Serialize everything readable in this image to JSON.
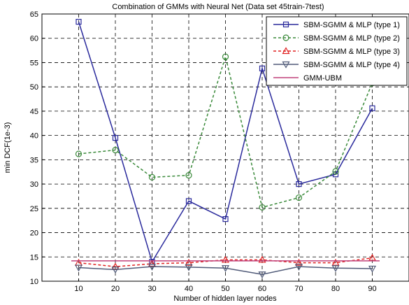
{
  "chart_data": {
    "type": "line",
    "title": "Combination of GMMs with Neural Net (Data set 45train-7test)",
    "xlabel": "Number of hidden layer nodes",
    "ylabel": "min DCF(1e-3)",
    "xlim": [
      0,
      100
    ],
    "ylim": [
      10,
      65
    ],
    "xticks": [
      10,
      20,
      30,
      40,
      50,
      60,
      70,
      80,
      90
    ],
    "yticks": [
      10,
      15,
      20,
      25,
      30,
      35,
      40,
      45,
      50,
      55,
      60,
      65
    ],
    "grid": true,
    "legend_position": "top-right",
    "x": [
      10,
      20,
      30,
      40,
      50,
      60,
      70,
      80,
      90
    ],
    "series": [
      {
        "name": "SBM-SGMM & MLP (type 1)",
        "color": "#2a2a9c",
        "dash": "solid",
        "marker": "square",
        "values": [
          63.4,
          39.5,
          14.0,
          26.5,
          22.8,
          53.8,
          30.0,
          32.0,
          45.6
        ]
      },
      {
        "name": "SBM-SGMM & MLP (type 2)",
        "color": "#3a8a3a",
        "dash": "dashed",
        "marker": "circle",
        "values": [
          36.2,
          37.0,
          31.4,
          31.8,
          56.2,
          25.2,
          27.2,
          32.6,
          50.8
        ]
      },
      {
        "name": "SBM-SGMM & MLP (type 3)",
        "color": "#e02020",
        "dash": "dashed",
        "marker": "triangle-up",
        "values": [
          13.8,
          13.0,
          13.6,
          13.8,
          14.4,
          14.4,
          13.8,
          13.8,
          14.8
        ]
      },
      {
        "name": "SBM-SGMM & MLP (type 4)",
        "color": "#505a78",
        "dash": "solid",
        "marker": "triangle-down",
        "values": [
          12.8,
          12.4,
          13.0,
          12.9,
          12.7,
          11.4,
          13.0,
          12.7,
          12.6
        ]
      },
      {
        "name": "GMM-UBM",
        "color": "#c0407a",
        "dash": "solid",
        "marker": "none",
        "values": [
          14.2,
          14.2,
          14.2,
          14.2,
          14.2,
          14.2,
          14.2,
          14.2,
          14.2
        ]
      }
    ]
  }
}
